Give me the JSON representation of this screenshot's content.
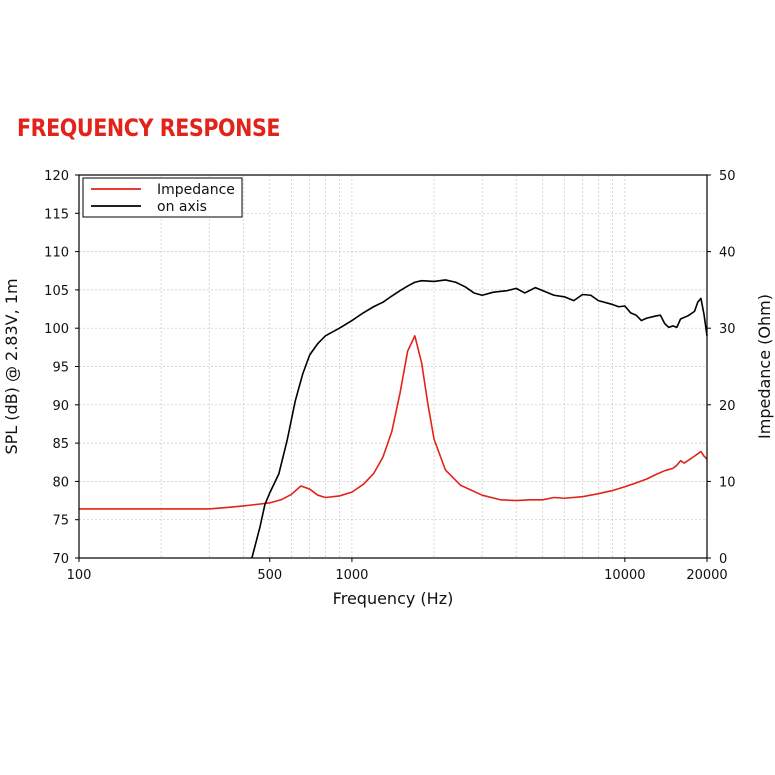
{
  "page": {
    "title": "FREQUENCY RESPONSE"
  },
  "colors": {
    "title": "#e2231a",
    "impedance": "#e2231a",
    "on_axis": "#000000",
    "grid": "#c8c8c8"
  },
  "chart_data": {
    "type": "line",
    "x_scale": "log",
    "xlim": [
      100,
      20000
    ],
    "ylim": [
      70,
      120
    ],
    "y2lim": [
      0,
      50
    ],
    "xlabel": "Frequency (Hz)",
    "ylabel": "SPL (dB) @ 2.83V, 1m",
    "y2label": "Impedance (Ohm)",
    "x_ticks": [
      100,
      500,
      1000,
      10000,
      20000
    ],
    "y_ticks": [
      70,
      75,
      80,
      85,
      90,
      95,
      100,
      105,
      110,
      115,
      120
    ],
    "y2_ticks": [
      0,
      10,
      20,
      30,
      40,
      50
    ],
    "grid": true,
    "legend_position": "top-left",
    "series": [
      {
        "name": "Impedance",
        "axis": "right",
        "color": "#e2231a",
        "points": [
          [
            100,
            6.4
          ],
          [
            200,
            6.4
          ],
          [
            300,
            6.4
          ],
          [
            350,
            6.6
          ],
          [
            400,
            6.8
          ],
          [
            450,
            7.0
          ],
          [
            500,
            7.2
          ],
          [
            550,
            7.6
          ],
          [
            600,
            8.3
          ],
          [
            650,
            9.4
          ],
          [
            700,
            9.0
          ],
          [
            750,
            8.2
          ],
          [
            800,
            7.9
          ],
          [
            900,
            8.1
          ],
          [
            1000,
            8.6
          ],
          [
            1100,
            9.6
          ],
          [
            1200,
            11.0
          ],
          [
            1300,
            13.2
          ],
          [
            1400,
            16.5
          ],
          [
            1500,
            21.5
          ],
          [
            1600,
            27.0
          ],
          [
            1700,
            29.0
          ],
          [
            1800,
            25.5
          ],
          [
            1900,
            20.0
          ],
          [
            2000,
            15.5
          ],
          [
            2200,
            11.5
          ],
          [
            2500,
            9.5
          ],
          [
            3000,
            8.2
          ],
          [
            3500,
            7.6
          ],
          [
            4000,
            7.5
          ],
          [
            4500,
            7.6
          ],
          [
            5000,
            7.6
          ],
          [
            5500,
            7.9
          ],
          [
            6000,
            7.8
          ],
          [
            7000,
            8.0
          ],
          [
            8000,
            8.4
          ],
          [
            9000,
            8.8
          ],
          [
            10000,
            9.3
          ],
          [
            11000,
            9.8
          ],
          [
            12000,
            10.3
          ],
          [
            13000,
            10.9
          ],
          [
            14000,
            11.4
          ],
          [
            15000,
            11.7
          ],
          [
            15500,
            12.1
          ],
          [
            16000,
            12.7
          ],
          [
            16500,
            12.4
          ],
          [
            17000,
            12.7
          ],
          [
            18000,
            13.3
          ],
          [
            18500,
            13.6
          ],
          [
            19000,
            13.9
          ],
          [
            19500,
            13.3
          ],
          [
            20000,
            12.9
          ]
        ]
      },
      {
        "name": "on axis",
        "axis": "left",
        "color": "#000000",
        "points": [
          [
            430,
            70.0
          ],
          [
            460,
            74.0
          ],
          [
            480,
            77.0
          ],
          [
            500,
            78.5
          ],
          [
            540,
            81.0
          ],
          [
            580,
            85.5
          ],
          [
            620,
            90.5
          ],
          [
            660,
            94.0
          ],
          [
            700,
            96.5
          ],
          [
            750,
            98.0
          ],
          [
            800,
            99.0
          ],
          [
            900,
            100.0
          ],
          [
            1000,
            101.0
          ],
          [
            1100,
            102.0
          ],
          [
            1200,
            102.8
          ],
          [
            1300,
            103.4
          ],
          [
            1400,
            104.2
          ],
          [
            1500,
            104.9
          ],
          [
            1600,
            105.5
          ],
          [
            1700,
            106.0
          ],
          [
            1800,
            106.2
          ],
          [
            2000,
            106.1
          ],
          [
            2200,
            106.3
          ],
          [
            2400,
            106.0
          ],
          [
            2600,
            105.4
          ],
          [
            2800,
            104.6
          ],
          [
            3000,
            104.3
          ],
          [
            3300,
            104.7
          ],
          [
            3700,
            104.9
          ],
          [
            4000,
            105.2
          ],
          [
            4300,
            104.6
          ],
          [
            4700,
            105.3
          ],
          [
            5000,
            104.9
          ],
          [
            5500,
            104.3
          ],
          [
            6000,
            104.1
          ],
          [
            6500,
            103.6
          ],
          [
            7000,
            104.4
          ],
          [
            7500,
            104.3
          ],
          [
            8000,
            103.6
          ],
          [
            9000,
            103.1
          ],
          [
            9500,
            102.8
          ],
          [
            10000,
            102.9
          ],
          [
            10500,
            102.0
          ],
          [
            11000,
            101.7
          ],
          [
            11500,
            101.0
          ],
          [
            12000,
            101.3
          ],
          [
            13000,
            101.6
          ],
          [
            13500,
            101.7
          ],
          [
            14000,
            100.6
          ],
          [
            14500,
            100.1
          ],
          [
            15000,
            100.3
          ],
          [
            15500,
            100.1
          ],
          [
            16000,
            101.2
          ],
          [
            17000,
            101.6
          ],
          [
            18000,
            102.2
          ],
          [
            18500,
            103.4
          ],
          [
            19000,
            103.9
          ],
          [
            19500,
            101.8
          ],
          [
            20000,
            99.0
          ]
        ]
      }
    ]
  }
}
